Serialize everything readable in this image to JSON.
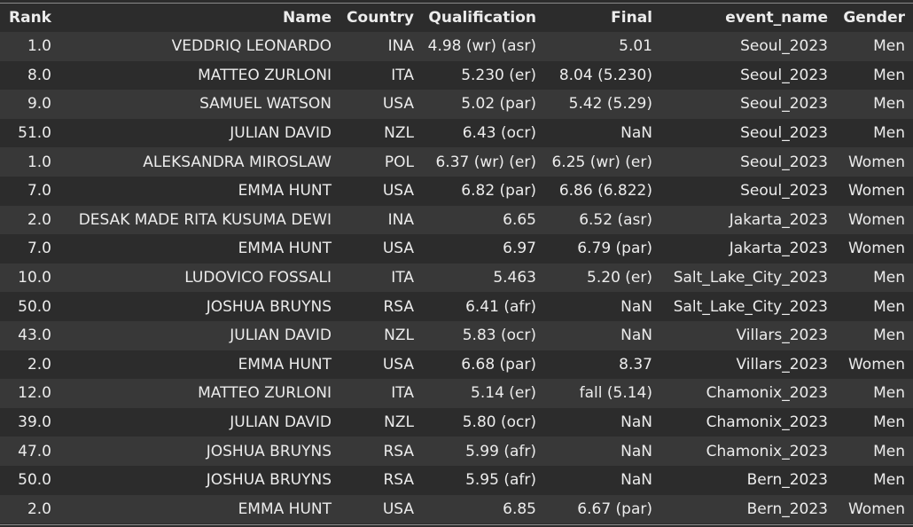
{
  "table": {
    "columns": [
      "Rank",
      "Name",
      "Country",
      "Qualification",
      "Final",
      "event_name",
      "Gender"
    ],
    "rows": [
      [
        "1.0",
        "VEDDRIQ LEONARDO",
        "INA",
        "4.98 (wr) (asr)",
        "5.01",
        "Seoul_2023",
        "Men"
      ],
      [
        "8.0",
        "MATTEO ZURLONI",
        "ITA",
        "5.230 (er)",
        "8.04 (5.230)",
        "Seoul_2023",
        "Men"
      ],
      [
        "9.0",
        "SAMUEL WATSON",
        "USA",
        "5.02 (par)",
        "5.42 (5.29)",
        "Seoul_2023",
        "Men"
      ],
      [
        "51.0",
        "JULIAN DAVID",
        "NZL",
        "6.43 (ocr)",
        "NaN",
        "Seoul_2023",
        "Men"
      ],
      [
        "1.0",
        "ALEKSANDRA MIROSLAW",
        "POL",
        "6.37 (wr) (er)",
        "6.25 (wr) (er)",
        "Seoul_2023",
        "Women"
      ],
      [
        "7.0",
        "EMMA HUNT",
        "USA",
        "6.82 (par)",
        "6.86 (6.822)",
        "Seoul_2023",
        "Women"
      ],
      [
        "2.0",
        "DESAK MADE RITA KUSUMA DEWI",
        "INA",
        "6.65",
        "6.52 (asr)",
        "Jakarta_2023",
        "Women"
      ],
      [
        "7.0",
        "EMMA HUNT",
        "USA",
        "6.97",
        "6.79 (par)",
        "Jakarta_2023",
        "Women"
      ],
      [
        "10.0",
        "LUDOVICO FOSSALI",
        "ITA",
        "5.463",
        "5.20 (er)",
        "Salt_Lake_City_2023",
        "Men"
      ],
      [
        "50.0",
        "JOSHUA BRUYNS",
        "RSA",
        "6.41 (afr)",
        "NaN",
        "Salt_Lake_City_2023",
        "Men"
      ],
      [
        "43.0",
        "JULIAN DAVID",
        "NZL",
        "5.83 (ocr)",
        "NaN",
        "Villars_2023",
        "Men"
      ],
      [
        "2.0",
        "EMMA HUNT",
        "USA",
        "6.68 (par)",
        "8.37",
        "Villars_2023",
        "Women"
      ],
      [
        "12.0",
        "MATTEO ZURLONI",
        "ITA",
        "5.14 (er)",
        "fall (5.14)",
        "Chamonix_2023",
        "Men"
      ],
      [
        "39.0",
        "JULIAN DAVID",
        "NZL",
        "5.80 (ocr)",
        "NaN",
        "Chamonix_2023",
        "Men"
      ],
      [
        "47.0",
        "JOSHUA BRUYNS",
        "RSA",
        "5.99 (afr)",
        "NaN",
        "Chamonix_2023",
        "Men"
      ],
      [
        "50.0",
        "JOSHUA BRUYNS",
        "RSA",
        "5.95 (afr)",
        "NaN",
        "Bern_2023",
        "Men"
      ],
      [
        "2.0",
        "EMMA HUNT",
        "USA",
        "6.85",
        "6.67 (par)",
        "Bern_2023",
        "Women"
      ]
    ]
  },
  "colors": {
    "background": "#2c2c2c",
    "row_stripe": "#383838",
    "text": "#ececec",
    "rule": "#8a8a8a"
  }
}
